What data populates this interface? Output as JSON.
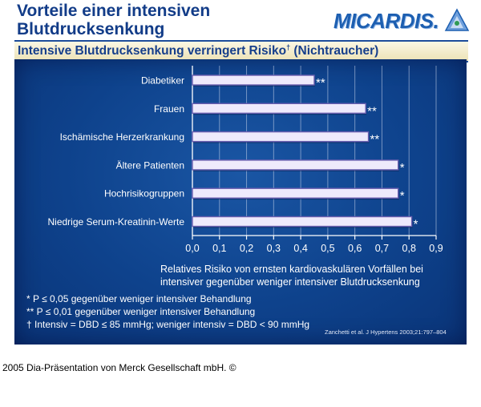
{
  "header": {
    "title_line1": "Vorteile einer intensiven",
    "title_line2": "Blutdrucksenkung",
    "logo_text": "MICARDIS.",
    "subtitle": "Intensive Blutdrucksenkung verringert Risiko",
    "subtitle_sup": "†",
    "subtitle_suffix": " (Nichtraucher)"
  },
  "chart_data": {
    "type": "bar",
    "orientation": "horizontal",
    "categories": [
      "Diabetiker",
      "Frauen",
      "Ischämische Herzerkrankung",
      "Ältere Patienten",
      "Hochrisikogruppen",
      "Niedrige Serum-Kreatinin-Werte"
    ],
    "values": [
      0.45,
      0.64,
      0.65,
      0.76,
      0.76,
      0.81
    ],
    "significance": [
      "**",
      "**",
      "**",
      "*",
      "*",
      "*"
    ],
    "xlim": [
      0,
      0.9
    ],
    "xticks": [
      0.0,
      0.1,
      0.2,
      0.3,
      0.4,
      0.5,
      0.6,
      0.7,
      0.8,
      0.9
    ],
    "xtick_labels": [
      "0,0",
      "0,1",
      "0,2",
      "0,3",
      "0,4",
      "0,5",
      "0,6",
      "0,7",
      "0,8",
      "0,9"
    ],
    "grid": true,
    "xlabel": "Relatives Risiko von ernsten kardiovaskulären Vorfällen bei intensiver gegenüber weniger intensiver Blutdrucksenkung"
  },
  "description": {
    "line1": "Relatives Risiko von ernsten kardiovaskulären Vorfällen bei",
    "line2": "intensiver gegenüber weniger intensiver Blutdrucksenkung"
  },
  "footnotes": {
    "note1": "* P ≤ 0,05 gegenüber weniger intensiver Behandlung",
    "note2": "** P ≤ 0,01 gegenüber weniger intensiver Behandlung",
    "note3": "† Intensiv = DBD ≤ 85 mmHg; weniger intensiv = DBD < 90 mmHg"
  },
  "source": "Zanchetti et al. J Hypertens 2003;21:797–804",
  "credit": "2005 Dia-Präsentation von Merck Gesellschaft mbH. ©",
  "colors": {
    "title": "#123c88",
    "panel": "#0e428c",
    "bar_fill": "#eeeafc",
    "bar_edge": "#6a5fb0",
    "grid": "#c8d3ea"
  }
}
